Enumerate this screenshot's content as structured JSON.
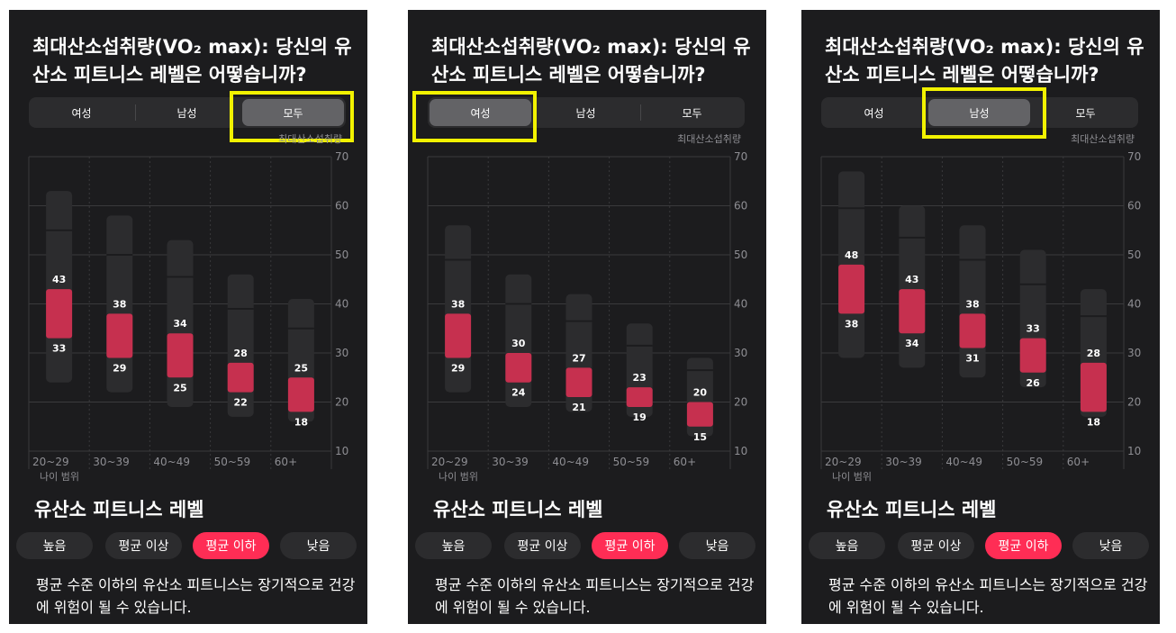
{
  "panels": [
    {
      "title": "최대산소섭취량(VO₂ max): 당신의 유산소 피트니스 레벨은 어떻습니까?",
      "segments": [
        "여성",
        "남성",
        "모두"
      ],
      "selected_segment": 2,
      "axis_title": "최대산소섭취량",
      "age_axis_label": "나이 범위",
      "section_title": "유산소 피트니스 레벨",
      "level_pills": [
        "높음",
        "평균 이상",
        "평균 이하",
        "낮음"
      ],
      "selected_pill": 2,
      "description": "평균 수준 이하의 유산소 피트니스는 장기적으로 건강에 위험이 될 수 있습니다.",
      "chart_data": {
        "type": "bar",
        "categories": [
          "20~29",
          "30~39",
          "40~49",
          "50~59",
          "60+"
        ],
        "y_ticks": [
          70,
          60,
          50,
          40,
          30,
          20,
          10
        ],
        "ylim": [
          10,
          70
        ],
        "range_top": [
          63,
          58,
          53,
          46,
          41
        ],
        "range_bottom": [
          24,
          22,
          19,
          17,
          16
        ],
        "highlight_high": [
          43,
          38,
          34,
          28,
          25
        ],
        "highlight_low": [
          33,
          29,
          25,
          22,
          18
        ]
      }
    },
    {
      "title": "최대산소섭취량(VO₂ max): 당신의 유산소 피트니스 레벨은 어떻습니까?",
      "segments": [
        "여성",
        "남성",
        "모두"
      ],
      "selected_segment": 0,
      "axis_title": "최대산소섭취량",
      "age_axis_label": "나이 범위",
      "section_title": "유산소 피트니스 레벨",
      "level_pills": [
        "높음",
        "평균 이상",
        "평균 이하",
        "낮음"
      ],
      "selected_pill": 2,
      "description": "평균 수준 이하의 유산소 피트니스는 장기적으로 건강에 위험이 될 수 있습니다.",
      "chart_data": {
        "type": "bar",
        "categories": [
          "20~29",
          "30~39",
          "40~49",
          "50~59",
          "60+"
        ],
        "y_ticks": [
          70,
          60,
          50,
          40,
          30,
          20,
          10
        ],
        "ylim": [
          10,
          70
        ],
        "range_top": [
          56,
          46,
          42,
          36,
          29
        ],
        "range_bottom": [
          22,
          19,
          18,
          17,
          13
        ],
        "highlight_high": [
          38,
          30,
          27,
          23,
          20
        ],
        "highlight_low": [
          29,
          24,
          21,
          19,
          15
        ]
      }
    },
    {
      "title": "최대산소섭취량(VO₂ max): 당신의 유산소 피트니스 레벨은 어떻습니까?",
      "segments": [
        "여성",
        "남성",
        "모두"
      ],
      "selected_segment": 1,
      "axis_title": "최대산소섭취량",
      "age_axis_label": "나이 범위",
      "section_title": "유산소 피트니스 레벨",
      "level_pills": [
        "높음",
        "평균 이상",
        "평균 이하",
        "낮음"
      ],
      "selected_pill": 2,
      "description": "평균 수준 이하의 유산소 피트니스는 장기적으로 건강에 위험이 될 수 있습니다.",
      "chart_data": {
        "type": "bar",
        "categories": [
          "20~29",
          "30~39",
          "40~49",
          "50~59",
          "60+"
        ],
        "y_ticks": [
          70,
          60,
          50,
          40,
          30,
          20,
          10
        ],
        "ylim": [
          10,
          70
        ],
        "range_top": [
          67,
          60,
          56,
          51,
          43
        ],
        "range_bottom": [
          29,
          27,
          25,
          23,
          17
        ],
        "highlight_high": [
          48,
          43,
          38,
          33,
          28
        ],
        "highlight_low": [
          38,
          34,
          31,
          26,
          18
        ]
      }
    }
  ],
  "colors": {
    "panel_bg": "#1c1c1e",
    "range_bar": "#2c2c2e",
    "highlight_bar": "#c6304f",
    "pill_active": "#ff2d55",
    "annotation_box": "#f2f200"
  }
}
